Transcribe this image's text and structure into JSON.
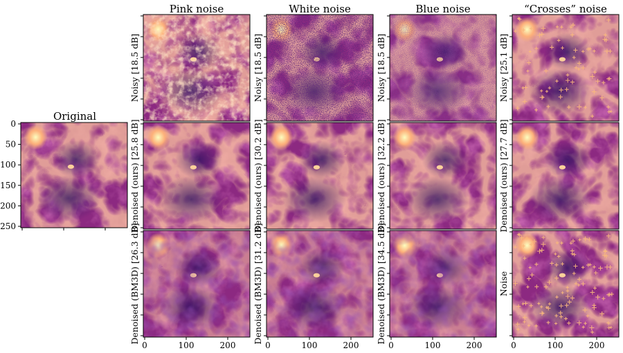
{
  "original": {
    "title": "Original",
    "y_ticks": [
      "0",
      "50",
      "100",
      "150",
      "200",
      "250"
    ]
  },
  "columns": [
    {
      "title": "Pink noise",
      "rows": [
        {
          "label": "Noisy [18.5 dB]"
        },
        {
          "label": "Denoised (ours) [25.8 dB]"
        },
        {
          "label": "Denoised (BM3D) [26.3 dB]"
        }
      ]
    },
    {
      "title": "White noise",
      "rows": [
        {
          "label": "Noisy [18.5 dB]"
        },
        {
          "label": "Denoised (ours) [30.2 dB]"
        },
        {
          "label": "Denoised (BM3D) [31.2 dB]"
        }
      ]
    },
    {
      "title": "Blue noise",
      "rows": [
        {
          "label": "Noisy [18.5 dB]"
        },
        {
          "label": "Denoised (ours) [32.2 dB]"
        },
        {
          "label": "Denoised (BM3D) [34.5 dB]"
        }
      ]
    },
    {
      "title": "“Crosses” noise",
      "rows": [
        {
          "label": "Noisy [25.1 dB]"
        },
        {
          "label": "Denoised (ours) [27.7 dB]"
        },
        {
          "label": "Noise"
        }
      ]
    }
  ],
  "x_ticks": [
    "0",
    "100",
    "200"
  ],
  "colors": {
    "colormap": "magma",
    "dark": "#3b0f70",
    "mid": "#b5367a",
    "bright": "#fcfdbf",
    "frame": "#000000"
  }
}
